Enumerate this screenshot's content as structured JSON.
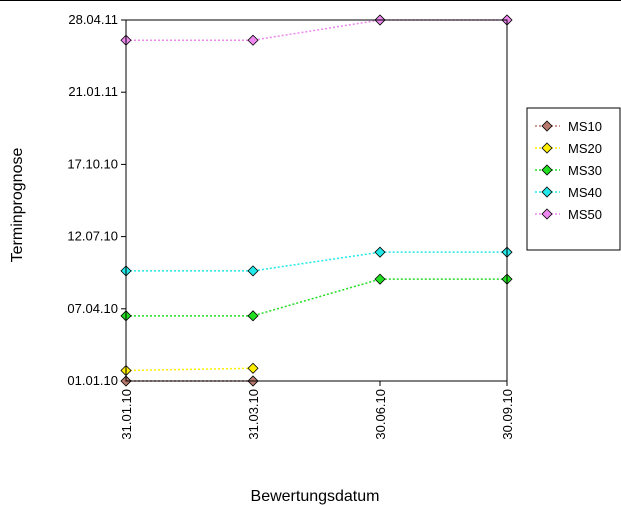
{
  "chart_data": {
    "type": "line",
    "xlabel": "Bewertungsdatum",
    "ylabel": "Terminprognose",
    "categories": [
      "31.01.10",
      "31.03.10",
      "30.06.10",
      "30.09.10"
    ],
    "y_ticks": [
      "01.01.10",
      "07.04.10",
      "12.07.10",
      "17.10.10",
      "21.01.11",
      "28.04.11"
    ],
    "ylim": [
      "2010-01-01",
      "2011-04-28"
    ],
    "grid": false,
    "legend_position": "right",
    "line_style": "dotted",
    "marker": "diamond",
    "series": [
      {
        "name": "MS10",
        "color": "#b87a6e",
        "values": [
          "2010-01-01",
          "2010-01-01",
          null,
          null
        ]
      },
      {
        "name": "MS20",
        "color": "#ffee00",
        "values": [
          "2010-01-15",
          "2010-01-18",
          null,
          null
        ]
      },
      {
        "name": "MS30",
        "color": "#22dd22",
        "values": [
          "2010-03-29",
          "2010-03-29",
          "2010-05-17",
          "2010-05-17"
        ]
      },
      {
        "name": "MS40",
        "color": "#22e8e8",
        "values": [
          "2010-05-28",
          "2010-05-28",
          "2010-06-22",
          "2010-06-22"
        ]
      },
      {
        "name": "MS50",
        "color": "#ee88ee",
        "values": [
          "2011-04-01",
          "2011-04-01",
          "2011-04-28",
          "2011-04-28"
        ]
      }
    ]
  }
}
